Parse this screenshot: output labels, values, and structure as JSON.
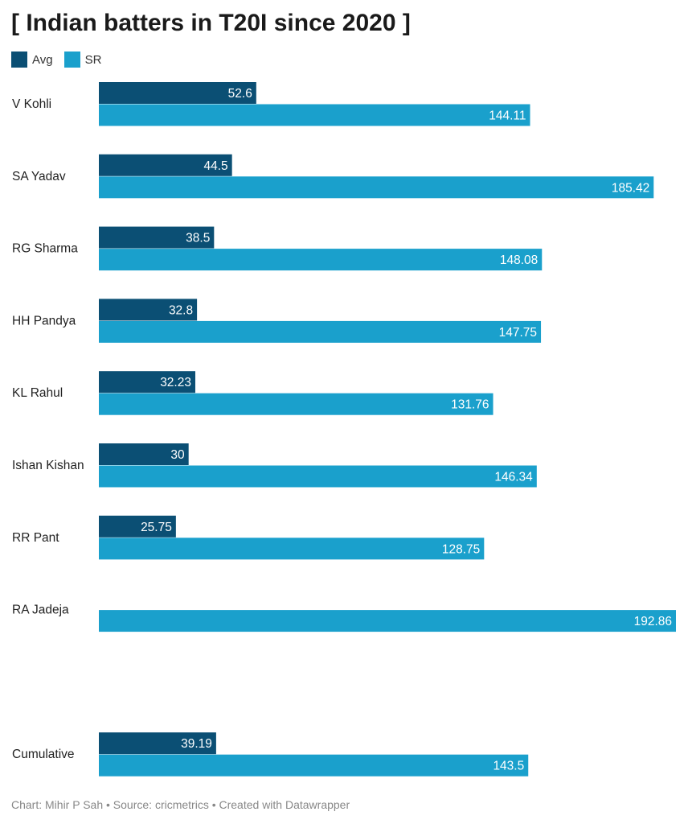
{
  "title": "[ Indian batters in T20I since 2020 ]",
  "footer": "Chart: Mihir P Sah • Source: cricmetrics • Created with Datawrapper",
  "colors": {
    "avg": "#0b4f74",
    "sr": "#1aa0cc",
    "label_text": "#ffffff",
    "category_text": "#222222"
  },
  "legend": [
    {
      "name": "Avg",
      "color": "#0b4f74"
    },
    {
      "name": "SR",
      "color": "#1aa0cc"
    }
  ],
  "chart_data": {
    "type": "bar",
    "orientation": "horizontal",
    "title": "[ Indian batters in T20I since 2020 ]",
    "categories": [
      "V Kohli",
      "SA Yadav",
      "RG Sharma",
      "HH Pandya",
      "KL Rahul",
      "Ishan Kishan",
      "RR Pant",
      "RA Jadeja",
      "",
      "Cumulative"
    ],
    "series": [
      {
        "name": "Avg",
        "values": [
          52.6,
          44.5,
          38.5,
          32.8,
          32.23,
          30,
          25.75,
          null,
          null,
          39.19
        ]
      },
      {
        "name": "SR",
        "values": [
          144.11,
          185.42,
          148.08,
          147.75,
          131.76,
          146.34,
          128.75,
          192.86,
          null,
          143.5
        ]
      }
    ],
    "xlim": [
      0,
      192.86
    ],
    "legend_position": "top-left",
    "grid": false
  }
}
